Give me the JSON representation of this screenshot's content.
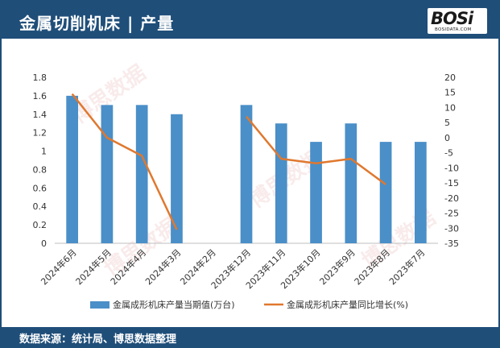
{
  "header": {
    "title": "金属切削机床 | 产量",
    "logo_text": "BOSi",
    "logo_sub": "BOSIDATA.COM"
  },
  "footer": {
    "source": "数据来源：统计局、博思数据整理"
  },
  "watermark": "博思数据",
  "colors": {
    "header_bg": "#1f4e79",
    "bar": "#4a8fc8",
    "line": "#e0782e"
  },
  "chart_data": {
    "type": "bar+line",
    "categories": [
      "2024年6月",
      "2024年5月",
      "2024年4月",
      "2024年3月",
      "2024年2月",
      "2023年12月",
      "2023年11月",
      "2023年10月",
      "2023年9月",
      "2023年8月",
      "2023年7月"
    ],
    "series": [
      {
        "name": "金属成形机床产量当期值(万台)",
        "type": "bar",
        "axis": "left",
        "values": [
          1.6,
          1.5,
          1.5,
          1.4,
          null,
          1.5,
          1.3,
          1.1,
          1.3,
          1.1,
          1.1
        ]
      },
      {
        "name": "金属成形机床产量同比增长(%)",
        "type": "line",
        "axis": "right",
        "values": [
          14.5,
          0,
          -6,
          -30.5,
          null,
          7,
          -7,
          -8.5,
          -7,
          -15.5,
          null
        ]
      }
    ],
    "y_left": {
      "min": 0,
      "max": 1.8,
      "ticks": [
        "0",
        "0.2",
        "0.4",
        "0.6",
        "0.8",
        "1",
        "1.2",
        "1.4",
        "1.6",
        "1.8"
      ]
    },
    "y_right": {
      "min": -35,
      "max": 20,
      "ticks": [
        "-35",
        "-30",
        "-25",
        "-20",
        "-15",
        "-10",
        "-5",
        "0",
        "5",
        "10",
        "15",
        "20"
      ]
    },
    "legend_position": "bottom",
    "grid": false
  }
}
